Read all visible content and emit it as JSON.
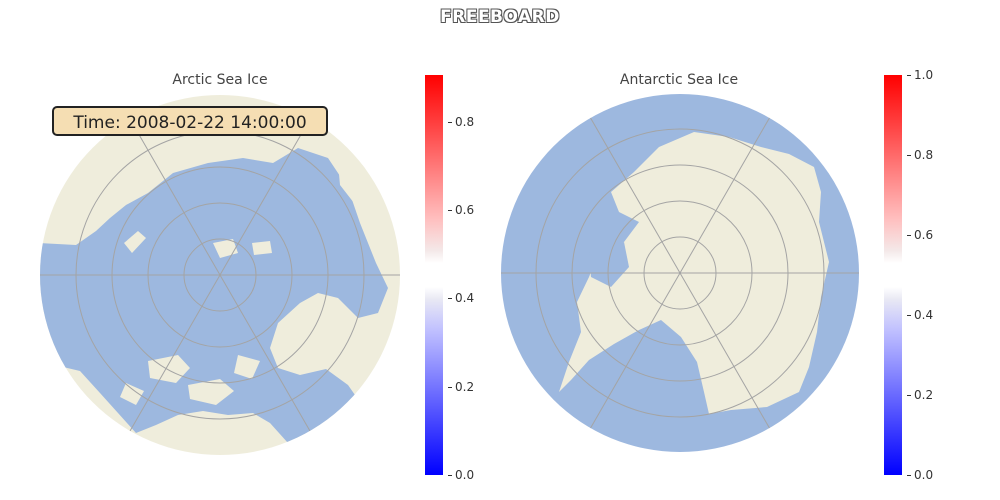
{
  "title": "FREEBOARD",
  "arctic": {
    "title": "Arctic Sea Ice",
    "time_label": "Time: 2008-02-22 14:00:00",
    "colorbar_ticks": [
      "0.0",
      "0.2",
      "0.4",
      "0.6",
      "0.8"
    ]
  },
  "antarctic": {
    "title": "Antarctic Sea Ice",
    "colorbar_ticks": [
      "0.0",
      "0.2",
      "0.4",
      "0.6",
      "0.8",
      "1.0"
    ]
  },
  "colors": {
    "ocean": "#9db8df",
    "land": "#efeddc",
    "grid": "#a4a4a4",
    "colormap_low": "#0000ff",
    "colormap_high": "#ff0000"
  }
}
